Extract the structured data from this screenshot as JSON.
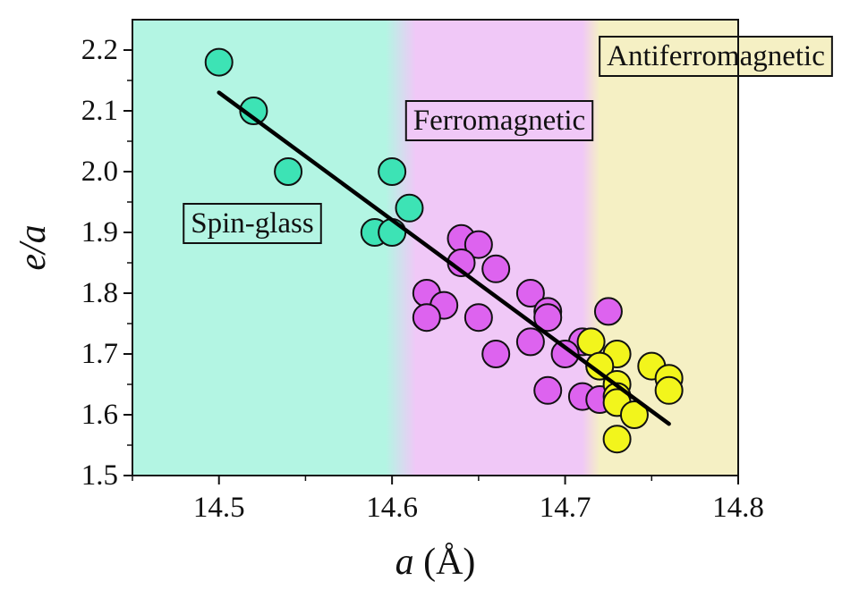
{
  "chart_data": {
    "type": "scatter",
    "title": "",
    "xlabel_var": "a",
    "xlabel_unit": " (Å)",
    "ylabel": "e/a",
    "xlim": [
      14.45,
      14.8
    ],
    "ylim": [
      1.5,
      2.25
    ],
    "xticks": [
      14.5,
      14.6,
      14.7,
      14.8
    ],
    "xtick_labels": [
      "14.5",
      "14.6",
      "14.7",
      "14.8"
    ],
    "yticks": [
      1.5,
      1.6,
      1.7,
      1.8,
      1.9,
      2.0,
      2.1,
      2.2
    ],
    "ytick_labels": [
      "1.5",
      "1.6",
      "1.7",
      "1.8",
      "1.9",
      "2.0",
      "2.1",
      "2.2"
    ],
    "grid": false,
    "regions": [
      {
        "label": "Spin-glass",
        "x_from": 14.45,
        "x_to": 14.605,
        "color": "#b3f5e3"
      },
      {
        "label": "Ferromagnetic",
        "x_from": 14.605,
        "x_to": 14.715,
        "color": "#f0c8f7"
      },
      {
        "label": "Antiferromagnetic",
        "x_from": 14.715,
        "x_to": 14.8,
        "color": "#f5f0c4"
      }
    ],
    "series": [
      {
        "color": "#3de3b5",
        "points": [
          [
            14.5,
            2.18
          ],
          [
            14.52,
            2.1
          ],
          [
            14.54,
            2.0
          ],
          [
            14.6,
            2.0
          ],
          [
            14.61,
            1.94
          ],
          [
            14.59,
            1.9
          ],
          [
            14.6,
            1.9
          ]
        ]
      },
      {
        "color": "#dd63ef",
        "points": [
          [
            14.64,
            1.89
          ],
          [
            14.65,
            1.88
          ],
          [
            14.64,
            1.85
          ],
          [
            14.66,
            1.84
          ],
          [
            14.62,
            1.8
          ],
          [
            14.68,
            1.8
          ],
          [
            14.63,
            1.78
          ],
          [
            14.62,
            1.76
          ],
          [
            14.65,
            1.76
          ],
          [
            14.69,
            1.77
          ],
          [
            14.69,
            1.76
          ],
          [
            14.725,
            1.77
          ],
          [
            14.68,
            1.72
          ],
          [
            14.71,
            1.72
          ],
          [
            14.66,
            1.7
          ],
          [
            14.7,
            1.7
          ],
          [
            14.72,
            1.68
          ],
          [
            14.69,
            1.64
          ],
          [
            14.71,
            1.63
          ],
          [
            14.72,
            1.625
          ]
        ]
      },
      {
        "color": "#f2f51c",
        "points": [
          [
            14.715,
            1.72
          ],
          [
            14.73,
            1.7
          ],
          [
            14.72,
            1.68
          ],
          [
            14.75,
            1.68
          ],
          [
            14.76,
            1.66
          ],
          [
            14.73,
            1.65
          ],
          [
            14.76,
            1.64
          ],
          [
            14.73,
            1.63
          ],
          [
            14.73,
            1.62
          ],
          [
            14.74,
            1.6
          ],
          [
            14.73,
            1.56
          ]
        ]
      }
    ],
    "fit_line": {
      "x": [
        14.5,
        14.76
      ],
      "y": [
        2.13,
        1.585
      ]
    }
  }
}
